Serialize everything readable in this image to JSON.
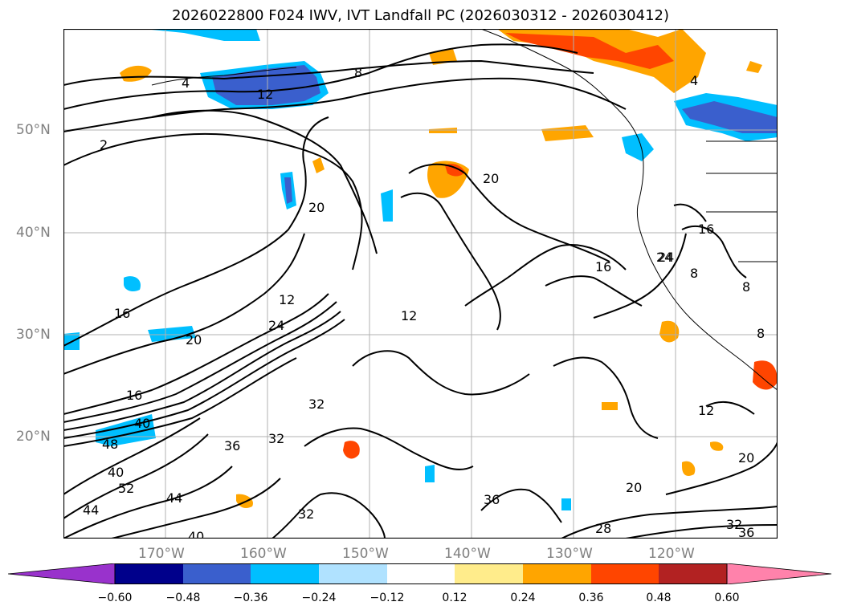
{
  "title": "2026022800 F024 IWV, IVT Landfall PC (2026030312 - 2026030412)",
  "lat_labels": [
    "50°N",
    "40°N",
    "30°N",
    "20°N"
  ],
  "lon_labels": [
    "170°W",
    "160°W",
    "150°W",
    "140°W",
    "130°W",
    "120°W"
  ],
  "colorbar": {
    "ticks": [
      "−0.60",
      "−0.48",
      "−0.36",
      "−0.24",
      "−0.12",
      "0.12",
      "0.24",
      "0.36",
      "0.48",
      "0.60"
    ],
    "colors": [
      "#9932cc",
      "#00008b",
      "#3a5fcd",
      "#00bfff",
      "#b0e2ff",
      "#ffffff",
      "#ffec8b",
      "#ffa500",
      "#ff4500",
      "#b22222",
      "#ff82ab"
    ]
  },
  "contour_labels": [
    "4",
    "8",
    "12",
    "2",
    "20",
    "16",
    "12",
    "20",
    "24",
    "16",
    "40",
    "48",
    "40",
    "52",
    "44",
    "44",
    "40",
    "36",
    "32",
    "32",
    "12",
    "20",
    "16",
    "24",
    "8",
    "8",
    "8",
    "12",
    "20",
    "20",
    "36",
    "32",
    "28",
    "32",
    "36",
    "4",
    "16",
    "24"
  ],
  "colors": {
    "land_line": "#000000",
    "grid": "#b0b0b0",
    "axis_label": "#808080"
  }
}
